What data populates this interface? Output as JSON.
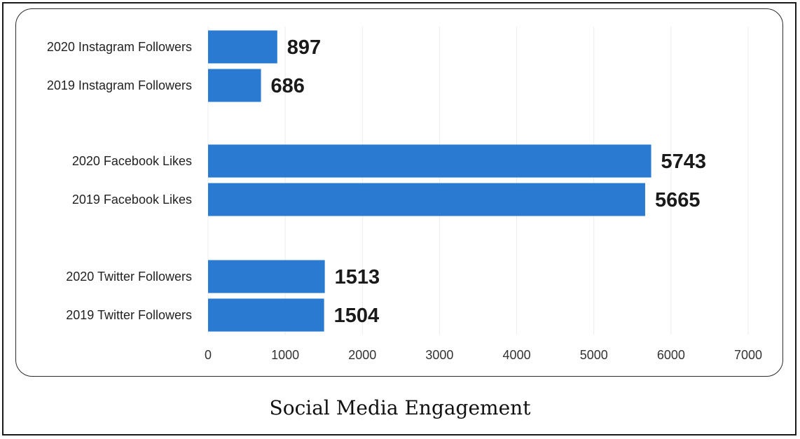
{
  "chart_data": {
    "type": "bar",
    "orientation": "horizontal",
    "title": "Social Media Engagement",
    "categories": [
      "2020 Instagram Followers",
      "2019 Instagram Followers",
      "2020 Facebook Likes",
      "2019 Facebook Likes",
      "2020 Twitter Followers",
      "2019 Twitter Followers"
    ],
    "values": [
      897,
      686,
      5743,
      5665,
      1513,
      1504
    ],
    "xticks": [
      "0",
      "1000",
      "2000",
      "3000",
      "4000",
      "5000",
      "6000",
      "7000"
    ],
    "xlim": [
      0,
      7000
    ],
    "grid": true,
    "bar_color": "#2a7ad1"
  }
}
